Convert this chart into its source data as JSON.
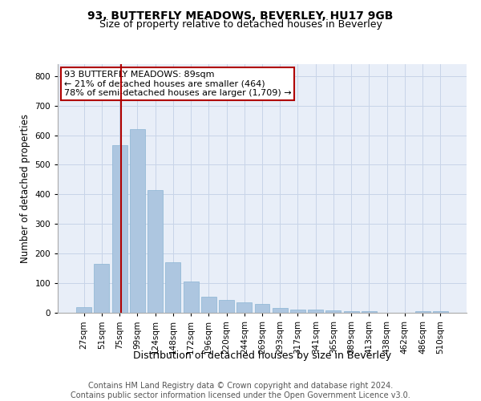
{
  "title": "93, BUTTERFLY MEADOWS, BEVERLEY, HU17 9GB",
  "subtitle": "Size of property relative to detached houses in Beverley",
  "xlabel": "Distribution of detached houses by size in Beverley",
  "ylabel": "Number of detached properties",
  "footer_line1": "Contains HM Land Registry data © Crown copyright and database right 2024.",
  "footer_line2": "Contains public sector information licensed under the Open Government Licence v3.0.",
  "bin_labels": [
    "27sqm",
    "51sqm",
    "75sqm",
    "99sqm",
    "124sqm",
    "148sqm",
    "172sqm",
    "196sqm",
    "220sqm",
    "244sqm",
    "269sqm",
    "293sqm",
    "317sqm",
    "341sqm",
    "365sqm",
    "389sqm",
    "413sqm",
    "438sqm",
    "462sqm",
    "486sqm",
    "510sqm"
  ],
  "bar_values": [
    20,
    165,
    565,
    620,
    415,
    170,
    105,
    55,
    43,
    35,
    30,
    15,
    10,
    10,
    8,
    5,
    5,
    0,
    0,
    5,
    5
  ],
  "bar_color": "#adc6e0",
  "bar_edge_color": "#8ab4d4",
  "vline_color": "#b00000",
  "annotation_text": "93 BUTTERFLY MEADOWS: 89sqm\n← 21% of detached houses are smaller (464)\n78% of semi-detached houses are larger (1,709) →",
  "annotation_box_color": "#b00000",
  "ylim": [
    0,
    840
  ],
  "yticks": [
    0,
    100,
    200,
    300,
    400,
    500,
    600,
    700,
    800
  ],
  "grid_color": "#c8d4e8",
  "background_color": "#e8eef8",
  "title_fontsize": 10,
  "subtitle_fontsize": 9,
  "tick_fontsize": 7.5,
  "ylabel_fontsize": 8.5,
  "xlabel_fontsize": 9,
  "footer_fontsize": 7,
  "annotation_fontsize": 8
}
